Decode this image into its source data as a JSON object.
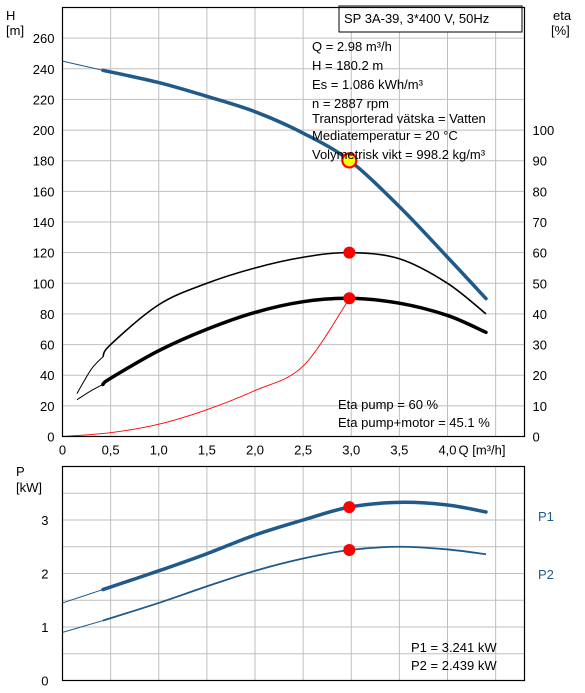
{
  "title_box": "SP 3A-39, 3*400 V, 50Hz",
  "info": [
    "Q = 2.98 m³/h",
    "H = 180.2 m",
    "Es = 1.086 kWh/m³",
    "n = 2887 rpm",
    "Transporterad vätska = Vatten",
    "Mediatemperatur = 20 °C",
    "Volymetrisk vikt = 998.2 kg/m³"
  ],
  "eta_info": [
    "Eta pump = 60 %",
    "Eta pump+motor = 45.1 %"
  ],
  "power_info": [
    "P1 = 3.241 kW",
    "P2 = 2.439 kW"
  ],
  "colors": {
    "blue": "#1f5a8a",
    "red": "#ff0000",
    "grid": "#bfbfbf",
    "yellow": "#ffff00"
  },
  "chart_data": [
    {
      "type": "line",
      "ylabel": "H\n[m]",
      "y2label": "eta\n[%]",
      "xlabel": "Q [m³/h]",
      "xlim": [
        0,
        4.8
      ],
      "ylim": [
        0,
        280
      ],
      "y2lim": [
        0,
        140
      ],
      "x_ticks": [
        "0",
        "0,5",
        "1,0",
        "1,5",
        "2,0",
        "2,5",
        "3,0",
        "3,5",
        "4,0"
      ],
      "y_ticks": [
        0,
        20,
        40,
        60,
        80,
        100,
        120,
        140,
        160,
        180,
        200,
        220,
        240,
        260
      ],
      "y2_ticks": [
        0,
        10,
        20,
        30,
        40,
        50,
        60,
        70,
        80,
        90,
        100
      ],
      "series": [
        {
          "points": [
            [
              0,
              245
            ],
            [
              0.42,
              239
            ],
            [
              1.0,
              231
            ],
            [
              1.5,
              222
            ],
            [
              2.0,
              212
            ],
            [
              2.5,
              198
            ],
            [
              2.98,
              180.2
            ],
            [
              3.5,
              150
            ],
            [
              4.0,
              117
            ],
            [
              4.4,
              90
            ]
          ]
        },
        {
          "points": [
            [
              0.15,
              14
            ],
            [
              0.3,
              22
            ],
            [
              0.42,
              26
            ],
            [
              0.5,
              30
            ],
            [
              1.0,
              43
            ],
            [
              1.5,
              50
            ],
            [
              2.0,
              55
            ],
            [
              2.5,
              58.5
            ],
            [
              2.98,
              60
            ],
            [
              3.5,
              58
            ],
            [
              4.0,
              50
            ],
            [
              4.4,
              40
            ]
          ]
        },
        {
          "points": [
            [
              0.15,
              12
            ],
            [
              0.3,
              15
            ],
            [
              0.42,
              17
            ],
            [
              0.5,
              19
            ],
            [
              1.0,
              28
            ],
            [
              1.5,
              35
            ],
            [
              2.0,
              40.5
            ],
            [
              2.5,
              44
            ],
            [
              2.98,
              45.1
            ],
            [
              3.5,
              43.5
            ],
            [
              4.0,
              39.5
            ],
            [
              4.4,
              34
            ]
          ]
        },
        {
          "points": [
            [
              0,
              0
            ],
            [
              0.5,
              2.5
            ],
            [
              1.0,
              8
            ],
            [
              1.5,
              17.5
            ],
            [
              2.0,
              30
            ],
            [
              2.5,
              46
            ],
            [
              2.98,
              90
            ]
          ]
        }
      ],
      "markers": [
        [
          2.98,
          180.2
        ],
        [
          2.98,
          60
        ],
        [
          2.98,
          45.1
        ]
      ]
    },
    {
      "type": "line",
      "ylabel": "P\n[kW]",
      "xlim": [
        0,
        4.8
      ],
      "ylim": [
        0,
        4.0
      ],
      "y_ticks": [
        0,
        1,
        2,
        3
      ],
      "series": [
        {
          "name": "P1",
          "points": [
            [
              0,
              1.45
            ],
            [
              0.42,
              1.7
            ],
            [
              1.0,
              2.05
            ],
            [
              1.5,
              2.37
            ],
            [
              2.0,
              2.72
            ],
            [
              2.5,
              3.0
            ],
            [
              2.98,
              3.241
            ],
            [
              3.5,
              3.33
            ],
            [
              4.0,
              3.28
            ],
            [
              4.4,
              3.15
            ]
          ]
        },
        {
          "name": "P2",
          "points": [
            [
              0,
              0.9
            ],
            [
              0.42,
              1.12
            ],
            [
              1.0,
              1.45
            ],
            [
              1.5,
              1.76
            ],
            [
              2.0,
              2.05
            ],
            [
              2.5,
              2.28
            ],
            [
              2.98,
              2.439
            ],
            [
              3.5,
              2.5
            ],
            [
              4.0,
              2.45
            ],
            [
              4.4,
              2.36
            ]
          ]
        }
      ],
      "markers": [
        [
          2.98,
          3.241
        ],
        [
          2.98,
          2.439
        ]
      ]
    }
  ]
}
